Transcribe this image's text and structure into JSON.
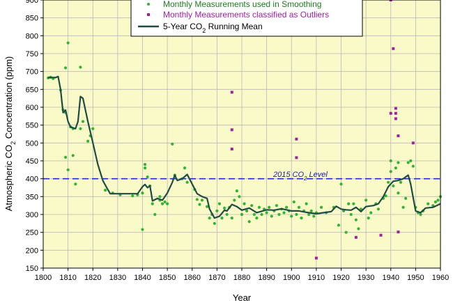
{
  "chart_data": {
    "type": "scatter",
    "xlabel": "Year",
    "ylabel": "Atmospheric CO2 Concentration (ppm)",
    "ylabel_parts": [
      "Atmospheric CO",
      "2",
      " Concentration (ppm)"
    ],
    "xlim": [
      1800,
      1960
    ],
    "ylim": [
      150,
      900
    ],
    "x_ticks": [
      1800,
      1810,
      1820,
      1830,
      1840,
      1850,
      1860,
      1870,
      1880,
      1890,
      1900,
      1910,
      1920,
      1930,
      1940,
      1950,
      1960
    ],
    "y_ticks": [
      150,
      200,
      250,
      300,
      350,
      400,
      450,
      500,
      550,
      600,
      650,
      700,
      750,
      800,
      850,
      900
    ],
    "grid": true,
    "legend_position": "top",
    "colors": {
      "plot_background": "#fafac8",
      "grid": "#b8b8b8",
      "smoothing_points": "#33b233",
      "outliers": "#a020a0",
      "running_mean": "#1e4b44",
      "reference_line": "#2828c8"
    },
    "reference_line": {
      "y": 400,
      "label_parts": [
        "2015 CO",
        "2",
        " Level"
      ]
    },
    "legend": {
      "smoothing_points": "Monthly Measurements used in Smoothing",
      "outliers": "Monthly Measurements classified as Outliers",
      "running_mean_parts": [
        "5-Year CO",
        "2",
        " Running Mean"
      ]
    },
    "series": [
      {
        "name": "5-Year CO2 Running Mean",
        "kind": "line",
        "points": [
          [
            1802,
            683
          ],
          [
            1805,
            683
          ],
          [
            1806,
            686
          ],
          [
            1807,
            650
          ],
          [
            1808,
            585
          ],
          [
            1809,
            592
          ],
          [
            1810,
            560
          ],
          [
            1811,
            545
          ],
          [
            1813,
            540
          ],
          [
            1814,
            560
          ],
          [
            1815,
            630
          ],
          [
            1816,
            625
          ],
          [
            1818,
            560
          ],
          [
            1820,
            500
          ],
          [
            1822,
            440
          ],
          [
            1824,
            395
          ],
          [
            1826,
            370
          ],
          [
            1827,
            358
          ],
          [
            1830,
            358
          ],
          [
            1835,
            358
          ],
          [
            1838,
            358
          ],
          [
            1840,
            378
          ],
          [
            1841,
            384
          ],
          [
            1842,
            375
          ],
          [
            1843,
            380
          ],
          [
            1844,
            338
          ],
          [
            1846,
            345
          ],
          [
            1848,
            340
          ],
          [
            1850,
            360
          ],
          [
            1852,
            390
          ],
          [
            1853,
            410
          ],
          [
            1854,
            395
          ],
          [
            1856,
            400
          ],
          [
            1858,
            412
          ],
          [
            1860,
            385
          ],
          [
            1862,
            358
          ],
          [
            1864,
            350
          ],
          [
            1866,
            345
          ],
          [
            1867,
            315
          ],
          [
            1869,
            290
          ],
          [
            1871,
            295
          ],
          [
            1873,
            312
          ],
          [
            1874,
            310
          ],
          [
            1876,
            328
          ],
          [
            1878,
            322
          ],
          [
            1880,
            312
          ],
          [
            1883,
            318
          ],
          [
            1886,
            305
          ],
          [
            1890,
            313
          ],
          [
            1893,
            312
          ],
          [
            1896,
            316
          ],
          [
            1900,
            310
          ],
          [
            1903,
            310
          ],
          [
            1906,
            306
          ],
          [
            1910,
            302
          ],
          [
            1913,
            305
          ],
          [
            1916,
            308
          ],
          [
            1918,
            323
          ],
          [
            1920,
            315
          ],
          [
            1922,
            313
          ],
          [
            1924,
            312
          ],
          [
            1926,
            320
          ],
          [
            1928,
            308
          ],
          [
            1930,
            322
          ],
          [
            1933,
            325
          ],
          [
            1935,
            330
          ],
          [
            1937,
            350
          ],
          [
            1939,
            378
          ],
          [
            1941,
            393
          ],
          [
            1943,
            395
          ],
          [
            1945,
            400
          ],
          [
            1947,
            410
          ],
          [
            1948,
            385
          ],
          [
            1950,
            310
          ],
          [
            1952,
            305
          ],
          [
            1954,
            318
          ],
          [
            1957,
            320
          ],
          [
            1960,
            330
          ]
        ]
      },
      {
        "name": "Monthly Measurements used in Smoothing",
        "kind": "points",
        "points": [
          [
            1802,
            682
          ],
          [
            1803,
            684
          ],
          [
            1804,
            680
          ],
          [
            1807,
            648
          ],
          [
            1808,
            593
          ],
          [
            1809,
            585
          ],
          [
            1809,
            710
          ],
          [
            1810,
            780
          ],
          [
            1809,
            460
          ],
          [
            1811,
            545
          ],
          [
            1810,
            425
          ],
          [
            1812,
            465
          ],
          [
            1812,
            540
          ],
          [
            1813,
            385
          ],
          [
            1815,
            712
          ],
          [
            1815,
            540
          ],
          [
            1816,
            560
          ],
          [
            1818,
            505
          ],
          [
            1819,
            520
          ],
          [
            1820,
            540
          ],
          [
            1825,
            368
          ],
          [
            1828,
            360
          ],
          [
            1831,
            355
          ],
          [
            1836,
            352
          ],
          [
            1838,
            355
          ],
          [
            1840,
            258
          ],
          [
            1840,
            360
          ],
          [
            1841,
            430
          ],
          [
            1841,
            440
          ],
          [
            1842,
            405
          ],
          [
            1843,
            380
          ],
          [
            1844,
            330
          ],
          [
            1845,
            300
          ],
          [
            1847,
            340
          ],
          [
            1847,
            350
          ],
          [
            1848,
            330
          ],
          [
            1849,
            335
          ],
          [
            1850,
            330
          ],
          [
            1852,
            497
          ],
          [
            1853,
            410
          ],
          [
            1856,
            400
          ],
          [
            1857,
            430
          ],
          [
            1858,
            390
          ],
          [
            1861,
            370
          ],
          [
            1862,
            342
          ],
          [
            1863,
            328
          ],
          [
            1864,
            340
          ],
          [
            1866,
            322
          ],
          [
            1867,
            290
          ],
          [
            1868,
            300
          ],
          [
            1869,
            275
          ],
          [
            1870,
            310
          ],
          [
            1871,
            330
          ],
          [
            1872,
            290
          ],
          [
            1873,
            318
          ],
          [
            1874,
            300
          ],
          [
            1875,
            320
          ],
          [
            1876,
            290
          ],
          [
            1877,
            340
          ],
          [
            1878,
            366
          ],
          [
            1879,
            350
          ],
          [
            1880,
            300
          ],
          [
            1881,
            330
          ],
          [
            1882,
            310
          ],
          [
            1883,
            280
          ],
          [
            1884,
            325
          ],
          [
            1885,
            300
          ],
          [
            1886,
            290
          ],
          [
            1887,
            320
          ],
          [
            1888,
            300
          ],
          [
            1889,
            315
          ],
          [
            1890,
            305
          ],
          [
            1891,
            320
          ],
          [
            1892,
            295
          ],
          [
            1893,
            310
          ],
          [
            1894,
            325
          ],
          [
            1895,
            300
          ],
          [
            1896,
            315
          ],
          [
            1897,
            305
          ],
          [
            1898,
            320
          ],
          [
            1899,
            310
          ],
          [
            1900,
            295
          ],
          [
            1901,
            335
          ],
          [
            1902,
            300
          ],
          [
            1903,
            320
          ],
          [
            1904,
            290
          ],
          [
            1905,
            310
          ],
          [
            1906,
            330
          ],
          [
            1907,
            300
          ],
          [
            1908,
            310
          ],
          [
            1909,
            295
          ],
          [
            1910,
            305
          ],
          [
            1912,
            320
          ],
          [
            1914,
            305
          ],
          [
            1917,
            320
          ],
          [
            1919,
            270
          ],
          [
            1920,
            385
          ],
          [
            1921,
            310
          ],
          [
            1922,
            250
          ],
          [
            1923,
            330
          ],
          [
            1924,
            300
          ],
          [
            1925,
            330
          ],
          [
            1926,
            285
          ],
          [
            1927,
            260
          ],
          [
            1928,
            315
          ],
          [
            1930,
            340
          ],
          [
            1931,
            290
          ],
          [
            1932,
            305
          ],
          [
            1934,
            330
          ],
          [
            1935,
            315
          ],
          [
            1937,
            345
          ],
          [
            1938,
            352
          ],
          [
            1939,
            390
          ],
          [
            1940,
            450
          ],
          [
            1940,
            420
          ],
          [
            1941,
            380
          ],
          [
            1942,
            430
          ],
          [
            1943,
            445
          ],
          [
            1943,
            360
          ],
          [
            1944,
            390
          ],
          [
            1945,
            320
          ],
          [
            1946,
            345
          ],
          [
            1947,
            445
          ],
          [
            1948,
            450
          ],
          [
            1949,
            435
          ],
          [
            1950,
            320
          ],
          [
            1951,
            305
          ],
          [
            1952,
            300
          ],
          [
            1953,
            310
          ],
          [
            1955,
            330
          ],
          [
            1957,
            325
          ],
          [
            1958,
            335
          ],
          [
            1959,
            340
          ],
          [
            1960,
            350
          ]
        ]
      },
      {
        "name": "Monthly Measurements classified as Outliers",
        "kind": "points",
        "points": [
          [
            1876,
            642
          ],
          [
            1876,
            537
          ],
          [
            1876,
            483
          ],
          [
            1902,
            511
          ],
          [
            1902,
            459
          ],
          [
            1910,
            178
          ],
          [
            1926,
            236
          ],
          [
            1936,
            242
          ],
          [
            1940,
            900
          ],
          [
            1941,
            764
          ],
          [
            1940,
            583
          ],
          [
            1942,
            597
          ],
          [
            1942,
            583
          ],
          [
            1942,
            568
          ],
          [
            1943,
            520
          ],
          [
            1943,
            251
          ],
          [
            1949,
            500
          ]
        ]
      }
    ]
  }
}
